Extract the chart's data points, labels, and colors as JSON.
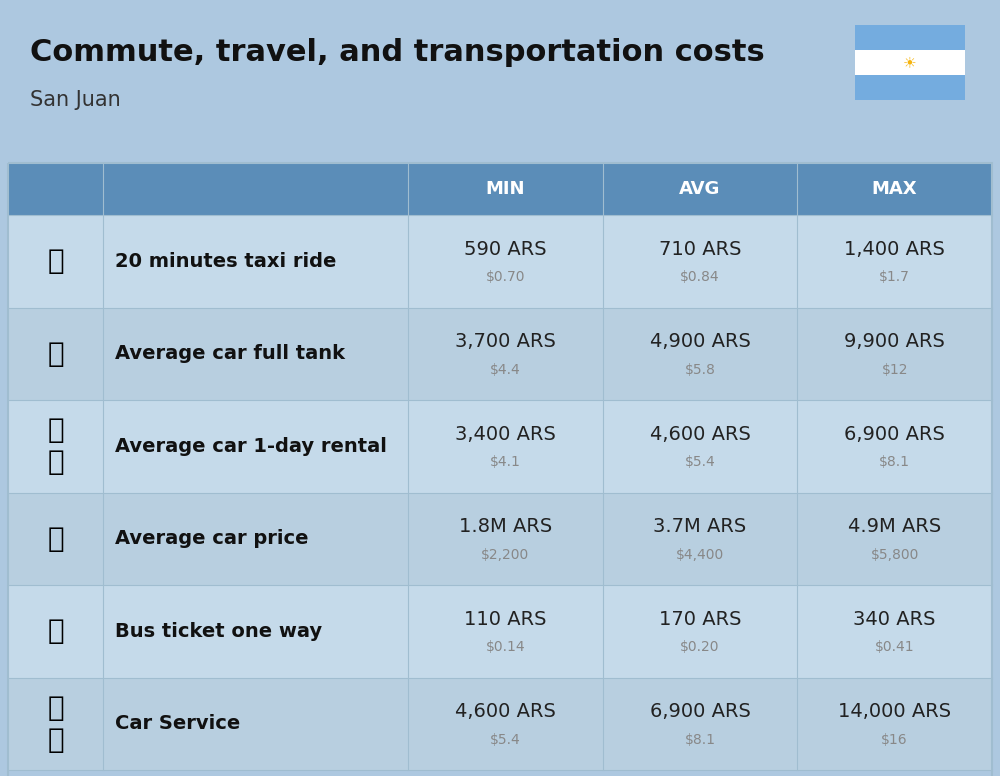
{
  "title": "Commute, travel, and transportation costs",
  "subtitle": "San Juan",
  "background_color": "#adc8e0",
  "header_bg_color": "#5b8db8",
  "header_text_color": "#ffffff",
  "row_bg_color_light": "#c5daea",
  "row_bg_color_dark": "#b8cfe0",
  "col_headers": [
    "MIN",
    "AVG",
    "MAX"
  ],
  "rows": [
    {
      "label": "20 minutes taxi ride",
      "min_ars": "590 ARS",
      "min_usd": "$0.70",
      "avg_ars": "710 ARS",
      "avg_usd": "$0.84",
      "max_ars": "1,400 ARS",
      "max_usd": "$1.7"
    },
    {
      "label": "Average car full tank",
      "min_ars": "3,700 ARS",
      "min_usd": "$4.4",
      "avg_ars": "4,900 ARS",
      "avg_usd": "$5.8",
      "max_ars": "9,900 ARS",
      "max_usd": "$12"
    },
    {
      "label": "Average car 1-day rental",
      "min_ars": "3,400 ARS",
      "min_usd": "$4.1",
      "avg_ars": "4,600 ARS",
      "avg_usd": "$5.4",
      "max_ars": "6,900 ARS",
      "max_usd": "$8.1"
    },
    {
      "label": "Average car price",
      "min_ars": "1.8M ARS",
      "min_usd": "$2,200",
      "avg_ars": "3.7M ARS",
      "avg_usd": "$4,400",
      "max_ars": "4.9M ARS",
      "max_usd": "$5,800"
    },
    {
      "label": "Bus ticket one way",
      "min_ars": "110 ARS",
      "min_usd": "$0.14",
      "avg_ars": "170 ARS",
      "avg_usd": "$0.20",
      "max_ars": "340 ARS",
      "max_usd": "$0.41"
    },
    {
      "label": "Car Service",
      "min_ars": "4,600 ARS",
      "min_usd": "$5.4",
      "avg_ars": "6,900 ARS",
      "avg_usd": "$8.1",
      "max_ars": "14,000 ARS",
      "max_usd": "$16"
    }
  ],
  "title_fontsize": 22,
  "subtitle_fontsize": 15,
  "header_fontsize": 13,
  "cell_ars_fontsize": 14,
  "cell_usd_fontsize": 10,
  "label_fontsize": 14
}
